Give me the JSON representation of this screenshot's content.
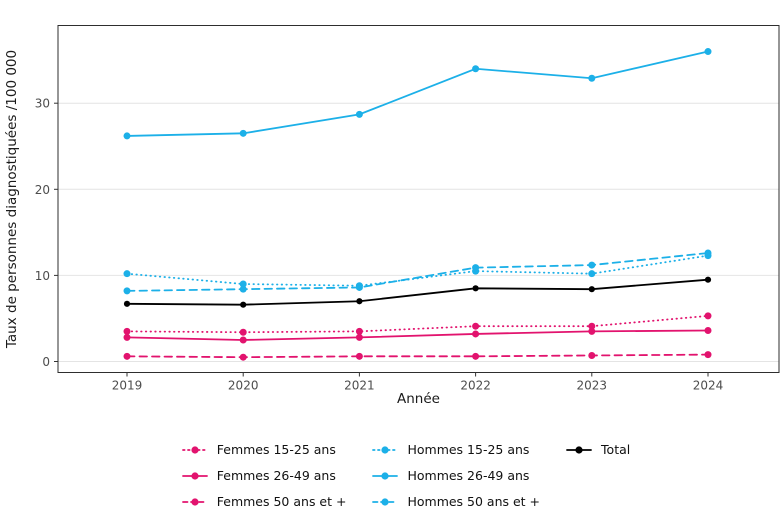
{
  "chart_data": {
    "type": "line",
    "title": "",
    "xlabel": "Année",
    "ylabel": "Taux de personnes diagnostiquées /100 000",
    "x": [
      2019,
      2020,
      2021,
      2022,
      2023,
      2024
    ],
    "yticks": [
      0,
      10,
      20,
      30
    ],
    "ylim": [
      -1.3,
      39
    ],
    "grid": "horizontal-major-only",
    "legend_position": "bottom",
    "series": [
      {
        "name": "Femmes 15-25 ans",
        "color": "#E2136E",
        "linetype": "dotted",
        "values": [
          3.5,
          3.4,
          3.5,
          4.1,
          4.1,
          5.3
        ]
      },
      {
        "name": "Femmes 26-49 ans",
        "color": "#E2136E",
        "linetype": "solid",
        "values": [
          2.8,
          2.5,
          2.8,
          3.2,
          3.5,
          3.6
        ]
      },
      {
        "name": "Femmes 50 ans et +",
        "color": "#E2136E",
        "linetype": "dashed",
        "values": [
          0.6,
          0.5,
          0.6,
          0.6,
          0.7,
          0.8
        ]
      },
      {
        "name": "Hommes 15-25 ans",
        "color": "#1CB0E8",
        "linetype": "dotted",
        "values": [
          10.2,
          9.0,
          8.8,
          10.5,
          10.2,
          12.3
        ]
      },
      {
        "name": "Hommes 26-49 ans",
        "color": "#1CB0E8",
        "linetype": "solid",
        "values": [
          26.2,
          26.5,
          28.7,
          34.0,
          32.9,
          36.0
        ]
      },
      {
        "name": "Hommes 50 ans et +",
        "color": "#1CB0E8",
        "linetype": "dashed",
        "values": [
          8.2,
          8.4,
          8.6,
          10.9,
          11.2,
          12.6
        ]
      },
      {
        "name": "Total",
        "color": "#000000",
        "linetype": "solid",
        "values": [
          6.7,
          6.6,
          7.0,
          8.5,
          8.4,
          9.5
        ]
      }
    ]
  },
  "style": {
    "grid_color": "#E4E4E4",
    "panel_border_color": "#2E2E2E",
    "tick_color": "#333333",
    "tick_label_color": "#4D4D4D",
    "axis_title_color": "#1A1A1A"
  }
}
